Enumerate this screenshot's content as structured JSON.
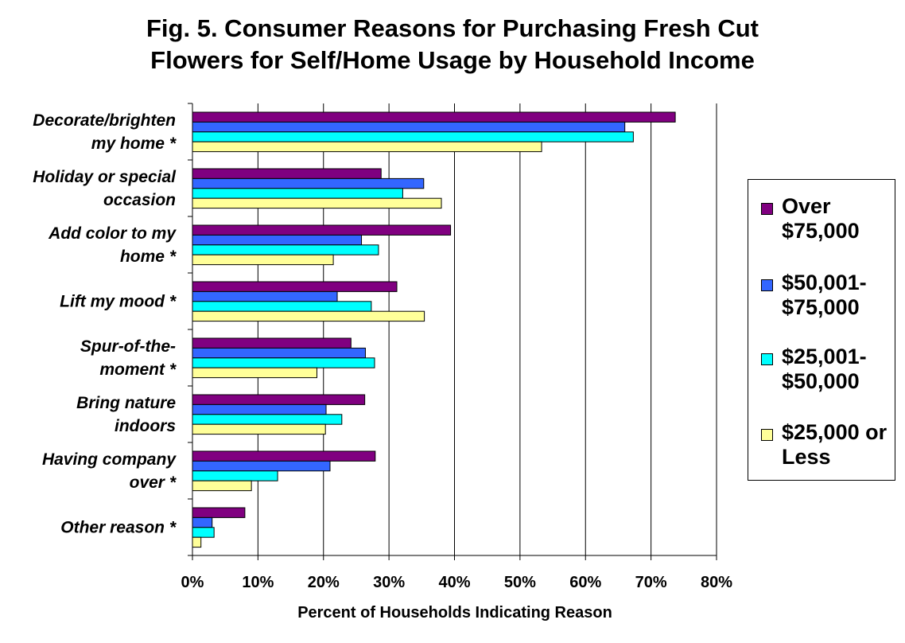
{
  "title_line1": "Fig. 5.  Consumer Reasons for Purchasing Fresh Cut",
  "title_line2": "Flowers for Self/Home Usage by Household Income",
  "colors": {
    "over_75000": "#800080",
    "50001_75000": "#3366ff",
    "25001_50000": "#00ffff",
    "25000_or_less": "#ffff99"
  },
  "legend": [
    {
      "line1": "Over",
      "line2": "$75,000",
      "color": "#800080"
    },
    {
      "line1": "$50,001-",
      "line2": "$75,000",
      "color": "#3366ff"
    },
    {
      "line1": "$25,001-",
      "line2": "$50,000",
      "color": "#00ffff"
    },
    {
      "line1": "$25,000 or",
      "line2": "Less",
      "color": "#ffff99"
    }
  ],
  "chart_data": {
    "type": "bar",
    "orientation": "horizontal",
    "title": "Fig. 5.  Consumer Reasons for Purchasing Fresh Cut Flowers for Self/Home Usage by Household Income",
    "xlabel": "Percent of Households Indicating Reason",
    "ylabel": "",
    "xlim": [
      0,
      80
    ],
    "x_ticks": [
      "0%",
      "10%",
      "20%",
      "30%",
      "40%",
      "50%",
      "60%",
      "70%",
      "80%"
    ],
    "grid": "vertical gridlines",
    "legend_position": "right",
    "categories": [
      [
        "Decorate/brighten",
        "my home *"
      ],
      [
        "Holiday or special",
        "occasion"
      ],
      [
        "Add color to my",
        "home *"
      ],
      [
        "Lift my mood *"
      ],
      [
        "Spur-of-the-",
        "moment *"
      ],
      [
        "Bring nature",
        "indoors"
      ],
      [
        "Having company",
        "over *"
      ],
      [
        "Other reason *"
      ]
    ],
    "series": [
      {
        "name": "Over $75,000",
        "color": "#800080",
        "values": [
          73.7,
          28.8,
          39.4,
          31.2,
          24.2,
          26.3,
          27.9,
          8.0
        ]
      },
      {
        "name": "$50,001-$75,000",
        "color": "#3366ff",
        "values": [
          66.0,
          35.3,
          25.8,
          22.1,
          26.4,
          20.4,
          21.0,
          3.0
        ]
      },
      {
        "name": "$25,001-$50,000",
        "color": "#00ffff",
        "values": [
          67.3,
          32.1,
          28.4,
          27.3,
          27.8,
          22.8,
          13.0,
          3.3
        ]
      },
      {
        "name": "$25,000 or Less",
        "color": "#ffff99",
        "values": [
          53.3,
          38.0,
          21.5,
          35.4,
          19.0,
          20.3,
          9.0,
          1.3
        ]
      }
    ]
  }
}
